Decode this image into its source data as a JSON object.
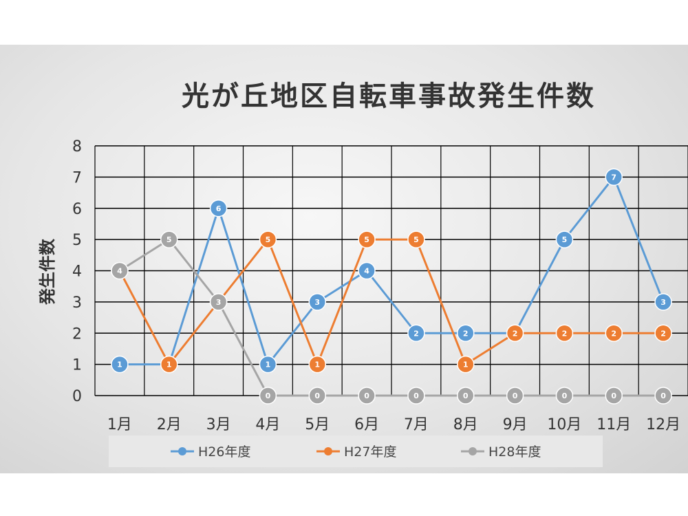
{
  "chart_data": {
    "type": "line",
    "title": "光が丘地区自転車事故発生件数",
    "ylabel": "発生件数",
    "xlabel": "",
    "categories": [
      "1月",
      "2月",
      "3月",
      "4月",
      "5月",
      "6月",
      "7月",
      "8月",
      "9月",
      "10月",
      "11月",
      "12月"
    ],
    "ylim": [
      0,
      8
    ],
    "yticks": [
      "0",
      "1",
      "2",
      "3",
      "4",
      "5",
      "6",
      "7",
      "8"
    ],
    "grid": true,
    "legend_position": "bottom",
    "series": [
      {
        "name": "H26年度",
        "color": "#5b9bd5",
        "values": [
          1,
          1,
          6,
          1,
          3,
          4,
          2,
          2,
          2,
          5,
          7,
          3
        ]
      },
      {
        "name": "H27年度",
        "color": "#ed7d31",
        "values": [
          4,
          1,
          3,
          5,
          1,
          5,
          5,
          1,
          2,
          2,
          2,
          2
        ]
      },
      {
        "name": "H28年度",
        "color": "#a5a5a5",
        "values": [
          4,
          5,
          3,
          0,
          0,
          0,
          0,
          0,
          0,
          0,
          0,
          0
        ]
      }
    ]
  }
}
